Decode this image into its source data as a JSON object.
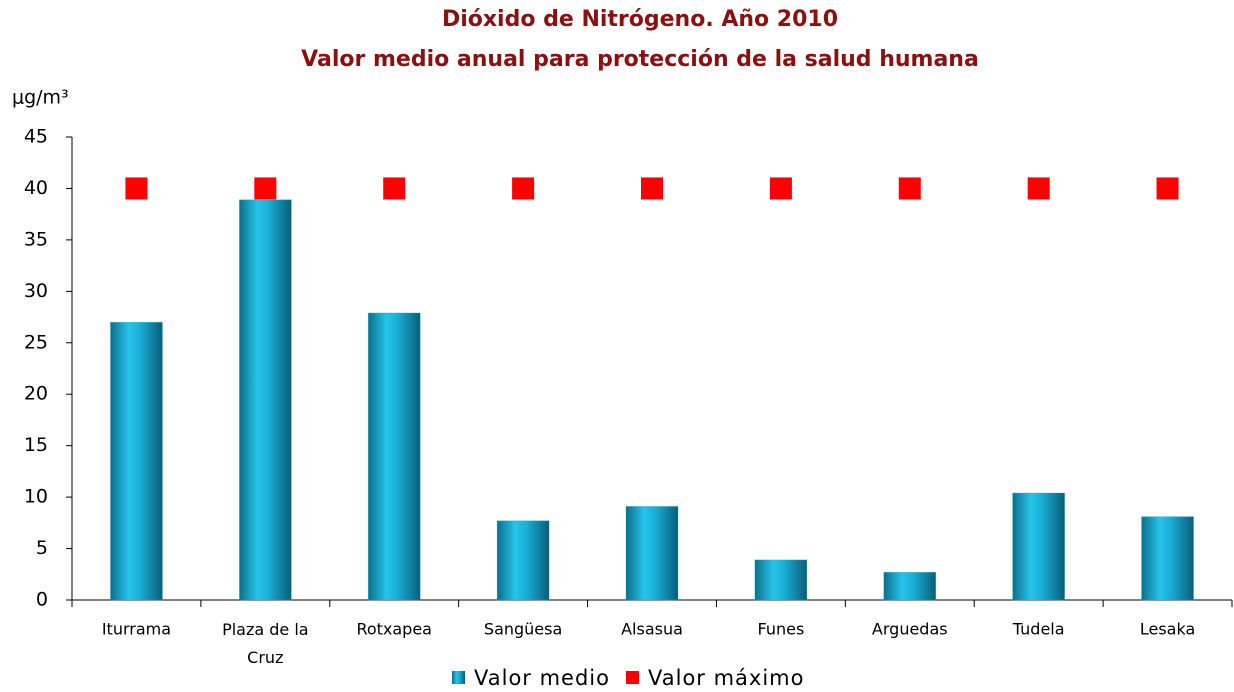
{
  "chart_data": {
    "type": "bar",
    "title": "Dióxido de Nitrógeno. Año 2010",
    "subtitle": "Valor medio anual para protección de la salud humana",
    "y_label": "μg/m³",
    "categories": [
      "Iturrama",
      "Plaza de la Cruz",
      "Rotxapea",
      "Sangüesa",
      "Alsasua",
      "Funes",
      "Arguedas",
      "Tudela",
      "Lesaka"
    ],
    "series": [
      {
        "name": "Valor medio",
        "color": "#1ab0d8",
        "marker": "bar",
        "values": [
          27,
          38.9,
          27.9,
          7.7,
          9.1,
          3.9,
          2.7,
          10.4,
          8.1
        ]
      },
      {
        "name": "Valor máximo",
        "color": "#ff0000",
        "marker": "square",
        "values": [
          40,
          40,
          40,
          40,
          40,
          40,
          40,
          40,
          40
        ]
      }
    ],
    "ylim": [
      0,
      45
    ],
    "yticks": [
      0,
      5,
      10,
      15,
      20,
      25,
      30,
      35,
      40,
      45
    ],
    "grid": false
  }
}
